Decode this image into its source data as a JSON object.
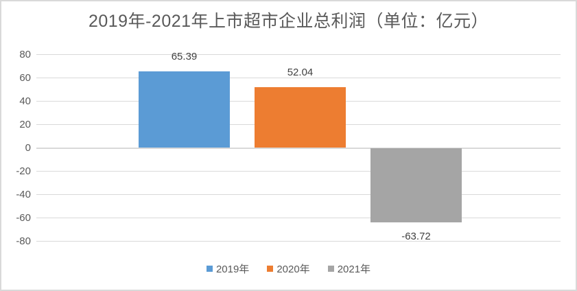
{
  "chart_data": {
    "type": "bar",
    "title": "2019年-2021年上市超市企业总利润（单位：亿元）",
    "categories": [
      ""
    ],
    "series": [
      {
        "name": "2019年",
        "value": 65.39,
        "label": "65.39",
        "color": "#5B9BD5"
      },
      {
        "name": "2020年",
        "value": 52.04,
        "label": "52.04",
        "color": "#ED7D31"
      },
      {
        "name": "2021年",
        "value": -63.72,
        "label": "-63.72",
        "color": "#A5A5A5"
      }
    ],
    "ylim": [
      -80,
      80
    ],
    "y_tick_step": 20,
    "y_ticks": [
      "80",
      "60",
      "40",
      "20",
      "0",
      "-20",
      "-40",
      "-60",
      "-80"
    ],
    "grid": true,
    "legend_position": "bottom",
    "colors": {
      "gridline": "#D9D9D9",
      "zero_axis_line": "#D9D9D9",
      "frame_border": "#D9D9D9",
      "background": "#FFFFFF",
      "title_text": "#595959",
      "tick_text": "#595959",
      "data_label_text": "#404040",
      "legend_text": "#595959"
    }
  }
}
